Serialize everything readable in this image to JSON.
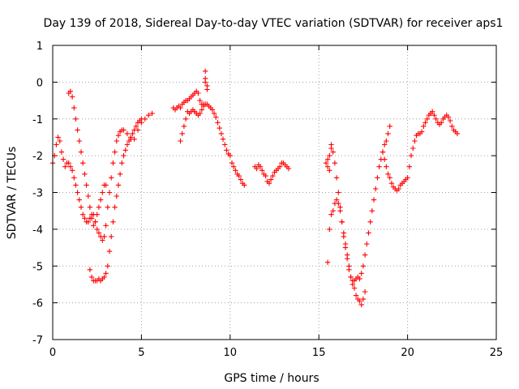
{
  "chart_data": {
    "type": "scatter",
    "title": "Day 139 of 2018, Sidereal Day-to-day VTEC variation (SDTVAR) for receiver aps1",
    "xlabel": "GPS time / hours",
    "ylabel": "SDTVAR / TECUs",
    "xlim": [
      0,
      25
    ],
    "ylim": [
      -7,
      1
    ],
    "xticks": [
      0,
      5,
      10,
      15,
      20,
      25
    ],
    "yticks": [
      -7,
      -6,
      -5,
      -4,
      -3,
      -2,
      -1,
      0,
      1
    ],
    "grid": true,
    "marker": "+",
    "color": "#ff0000",
    "series": [
      {
        "x": [
          0.0,
          0.1,
          0.2,
          0.3,
          0.4,
          0.5,
          0.6,
          0.7,
          0.8,
          0.9,
          1.0,
          1.1,
          1.2,
          1.3,
          1.4,
          1.5,
          1.6,
          1.7,
          1.8,
          1.9,
          2.0,
          2.1,
          2.2,
          2.3,
          2.4,
          2.5,
          2.6,
          2.7,
          2.8,
          2.9,
          3.0,
          3.1,
          3.2,
          3.3,
          3.4,
          3.5,
          3.6,
          3.7,
          3.8,
          3.9,
          4.0,
          4.2,
          4.4,
          4.6,
          4.8,
          5.0,
          5.2,
          5.4,
          5.6
        ],
        "y": [
          -2.2,
          -2.0,
          -1.7,
          -1.5,
          -1.6,
          -1.9,
          -2.1,
          -2.3,
          -2.2,
          -2.2,
          -2.3,
          -2.4,
          -2.6,
          -2.8,
          -3.0,
          -3.2,
          -3.4,
          -3.6,
          -3.7,
          -3.8,
          -3.8,
          -3.7,
          -3.6,
          -3.6,
          -3.8,
          -4.0,
          -4.1,
          -4.2,
          -4.3,
          -4.2,
          -3.9,
          -3.4,
          -3.0,
          -2.6,
          -2.2,
          -1.9,
          -1.6,
          -1.45,
          -1.35,
          -1.3,
          -1.3,
          -1.4,
          -1.55,
          -1.55,
          -1.3,
          -1.1,
          -1.0,
          -0.9,
          -0.85
        ]
      },
      {
        "x": [
          0.9,
          1.0,
          1.1,
          1.2,
          1.3,
          1.4,
          1.5,
          1.6,
          1.7,
          1.8,
          1.9,
          2.0,
          2.1,
          2.2,
          2.3,
          2.4,
          2.5,
          2.6,
          2.7,
          2.8,
          2.9,
          3.0
        ],
        "y": [
          -0.3,
          -0.25,
          -0.4,
          -0.7,
          -1.0,
          -1.3,
          -1.6,
          -1.9,
          -2.2,
          -2.5,
          -2.8,
          -3.1,
          -3.4,
          -3.7,
          -3.9,
          -3.8,
          -3.6,
          -3.4,
          -3.2,
          -3.0,
          -2.8,
          -2.8
        ]
      },
      {
        "x": [
          2.1,
          2.2,
          2.3,
          2.4,
          2.5,
          2.6,
          2.7,
          2.8,
          2.9,
          3.0,
          3.1,
          3.2,
          3.3,
          3.4,
          3.5,
          3.6,
          3.7,
          3.8,
          3.9,
          4.0,
          4.1,
          4.2,
          4.3,
          4.4,
          4.5,
          4.6,
          4.7,
          4.8,
          4.9,
          5.0
        ],
        "y": [
          -5.1,
          -5.3,
          -5.4,
          -5.4,
          -5.4,
          -5.35,
          -5.4,
          -5.35,
          -5.3,
          -5.2,
          -5.0,
          -4.6,
          -4.2,
          -3.8,
          -3.4,
          -3.1,
          -2.8,
          -2.5,
          -2.2,
          -2.0,
          -1.85,
          -1.7,
          -1.6,
          -1.5,
          -1.4,
          -1.3,
          -1.2,
          -1.1,
          -1.05,
          -1.0
        ]
      },
      {
        "x": [
          6.8,
          6.9,
          7.0,
          7.1,
          7.2,
          7.3,
          7.4,
          7.5,
          7.6,
          7.7,
          7.8,
          7.9,
          8.0,
          8.1,
          8.2,
          8.3,
          8.4,
          8.5,
          8.6,
          8.7,
          8.8,
          8.9,
          9.0,
          9.1,
          9.2,
          9.3,
          9.4,
          9.5,
          9.6,
          9.7,
          9.8,
          9.9,
          10.0,
          10.1,
          10.2,
          10.3,
          10.4,
          10.5,
          10.6,
          10.7,
          10.8
        ],
        "y": [
          -0.7,
          -0.75,
          -0.7,
          -0.65,
          -0.7,
          -0.6,
          -0.55,
          -0.5,
          -0.5,
          -0.45,
          -0.4,
          -0.35,
          -0.3,
          -0.25,
          -0.3,
          -0.5,
          -0.6,
          -0.6,
          -0.6,
          -0.6,
          -0.65,
          -0.7,
          -0.75,
          -0.85,
          -0.95,
          -1.1,
          -1.25,
          -1.4,
          -1.55,
          -1.7,
          -1.85,
          -1.95,
          -2.0,
          -2.2,
          -2.3,
          -2.4,
          -2.5,
          -2.55,
          -2.65,
          -2.75,
          -2.8
        ]
      },
      {
        "x": [
          7.2,
          7.3,
          7.4,
          7.5,
          7.6,
          7.7,
          7.8,
          7.9,
          8.0,
          8.1,
          8.2,
          8.3,
          8.4,
          8.5
        ],
        "y": [
          -1.6,
          -1.4,
          -1.2,
          -1.0,
          -0.8,
          -0.85,
          -0.8,
          -0.75,
          -0.8,
          -0.85,
          -0.9,
          -0.85,
          -0.75,
          -0.65
        ]
      },
      {
        "x": [
          8.6,
          8.6,
          8.6,
          8.7,
          8.7
        ],
        "y": [
          0.3,
          0.1,
          0.0,
          -0.1,
          -0.2
        ]
      },
      {
        "x": [
          11.4,
          11.5,
          11.6,
          11.7,
          11.8,
          11.9,
          12.0,
          12.1,
          12.2,
          12.3,
          12.4,
          12.5,
          12.6,
          12.7,
          12.8,
          12.9,
          13.0,
          13.1,
          13.2,
          13.3
        ],
        "y": [
          -2.3,
          -2.35,
          -2.25,
          -2.3,
          -2.4,
          -2.5,
          -2.55,
          -2.7,
          -2.75,
          -2.65,
          -2.55,
          -2.45,
          -2.4,
          -2.35,
          -2.3,
          -2.2,
          -2.2,
          -2.25,
          -2.3,
          -2.35
        ]
      },
      {
        "x": [
          15.4,
          15.5,
          15.5,
          15.6,
          15.6,
          15.7,
          15.7,
          15.8,
          15.9,
          16.0,
          16.1,
          16.2,
          16.3,
          16.4,
          16.5,
          16.6,
          16.7,
          16.8,
          16.9,
          17.0,
          17.1,
          17.2,
          17.3,
          17.4,
          17.5,
          17.6
        ],
        "y": [
          -2.2,
          -2.3,
          -2.1,
          -2.4,
          -2.0,
          -1.8,
          -1.7,
          -1.9,
          -2.2,
          -2.6,
          -3.0,
          -3.4,
          -3.8,
          -4.2,
          -4.5,
          -4.8,
          -5.1,
          -5.3,
          -5.5,
          -5.6,
          -5.8,
          -5.9,
          -5.95,
          -6.05,
          -5.9,
          -5.7
        ]
      },
      {
        "x": [
          15.5,
          15.6,
          15.7,
          15.8,
          15.9,
          16.0,
          16.1,
          16.2,
          16.3,
          16.4,
          16.5,
          16.6,
          16.7,
          16.8,
          16.9,
          17.0,
          17.1,
          17.2,
          17.3,
          17.4,
          17.5,
          17.6,
          17.7,
          17.8,
          17.9,
          18.0,
          18.1,
          18.2,
          18.3,
          18.4,
          18.5,
          18.6,
          18.7,
          18.8,
          18.9,
          19.0
        ],
        "y": [
          -4.9,
          -4.0,
          -3.6,
          -3.5,
          -3.3,
          -3.2,
          -3.3,
          -3.5,
          -3.8,
          -4.1,
          -4.4,
          -4.7,
          -5.0,
          -5.3,
          -5.4,
          -5.4,
          -5.35,
          -5.3,
          -5.35,
          -5.2,
          -5.0,
          -4.7,
          -4.4,
          -4.1,
          -3.8,
          -3.5,
          -3.2,
          -2.9,
          -2.6,
          -2.3,
          -2.1,
          -1.9,
          -1.7,
          -1.6,
          -1.4,
          -1.2
        ]
      },
      {
        "x": [
          18.6,
          18.7,
          18.8,
          18.9,
          19.0,
          19.1,
          19.2,
          19.3,
          19.4,
          19.5,
          19.6,
          19.7,
          19.8,
          19.9,
          20.0,
          20.1,
          20.2,
          20.3,
          20.4,
          20.5,
          20.6,
          20.7,
          20.8,
          20.9,
          21.0,
          21.1,
          21.2,
          21.3,
          21.4,
          21.5,
          21.6,
          21.7,
          21.8,
          21.9,
          22.0,
          22.1,
          22.2,
          22.3,
          22.4,
          22.5,
          22.6,
          22.7,
          22.8
        ],
        "y": [
          -1.9,
          -2.1,
          -2.3,
          -2.5,
          -2.6,
          -2.75,
          -2.85,
          -2.9,
          -2.95,
          -2.9,
          -2.8,
          -2.75,
          -2.7,
          -2.65,
          -2.6,
          -2.3,
          -2.0,
          -1.8,
          -1.6,
          -1.45,
          -1.4,
          -1.4,
          -1.35,
          -1.2,
          -1.1,
          -1.0,
          -0.9,
          -0.85,
          -0.8,
          -0.9,
          -1.0,
          -1.1,
          -1.15,
          -1.1,
          -1.0,
          -0.95,
          -0.9,
          -0.95,
          -1.05,
          -1.2,
          -1.3,
          -1.35,
          -1.4
        ]
      }
    ]
  }
}
